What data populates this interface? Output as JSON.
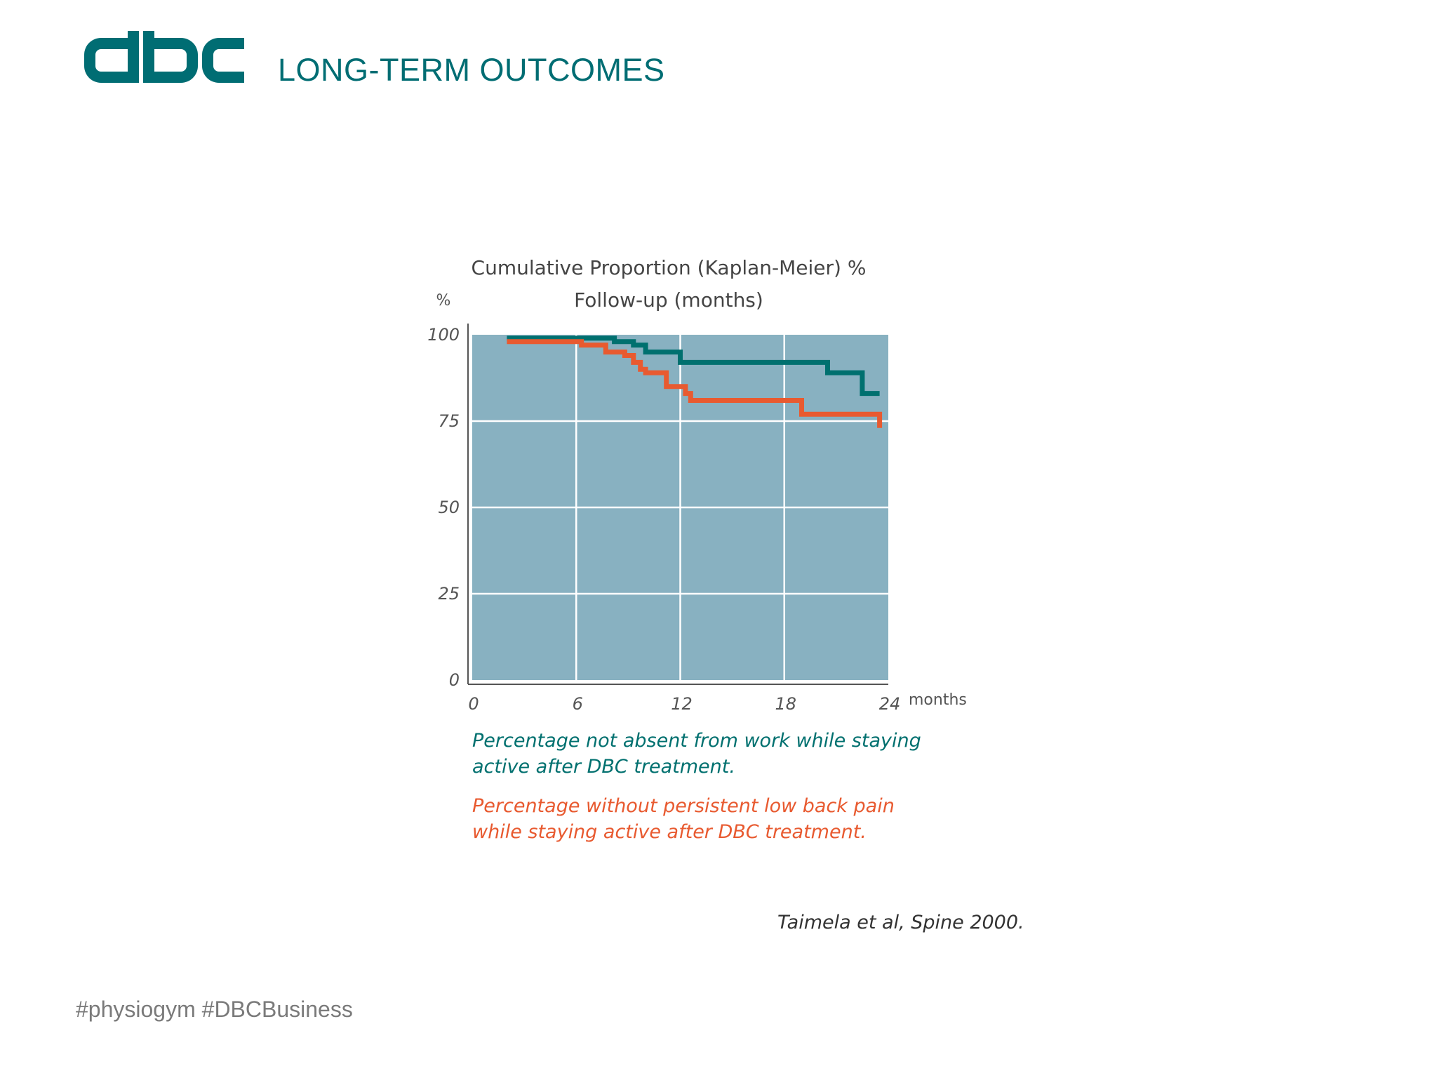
{
  "header": {
    "logo_text": "dbc",
    "title": "LONG-TERM OUTCOMES"
  },
  "colors": {
    "brand": "#006d73",
    "plot_bg": "#88b1c1",
    "series_work": "#00706f",
    "series_pain": "#e85a30",
    "grid": "#ffffff"
  },
  "chart_data": {
    "type": "line",
    "step": true,
    "title_line1": "Cumulative Proportion (Kaplan-Meier) %",
    "title_line2": "Follow-up (months)",
    "ylabel": "%",
    "xlabel": "months",
    "xlim": [
      0,
      24
    ],
    "ylim": [
      0,
      100
    ],
    "x_ticks": [
      "0",
      "6",
      "12",
      "18",
      "24"
    ],
    "y_ticks": [
      "100",
      "75",
      "50",
      "25",
      "0"
    ],
    "grid": true,
    "series": [
      {
        "name": "Percentage not absent from work while staying active after DBC treatment.",
        "legend_line1": "Percentage not absent from work while staying",
        "legend_line2": "active after DBC treatment.",
        "color": "#00706f",
        "points": [
          [
            2,
            99
          ],
          [
            8.2,
            99
          ],
          [
            8.2,
            98
          ],
          [
            9.3,
            98
          ],
          [
            9.3,
            97
          ],
          [
            10,
            97
          ],
          [
            10,
            95
          ],
          [
            12,
            95
          ],
          [
            12,
            92
          ],
          [
            20.5,
            92
          ],
          [
            20.5,
            89
          ],
          [
            22.5,
            89
          ],
          [
            22.5,
            83
          ],
          [
            23.5,
            83
          ]
        ]
      },
      {
        "name": "Percentage without persistent low back pain while staying active after DBC treatment.",
        "legend_line1": "Percentage without persistent low back pain",
        "legend_line2": "while staying active after DBC treatment.",
        "color": "#e85a30",
        "points": [
          [
            2,
            98
          ],
          [
            6.3,
            98
          ],
          [
            6.3,
            97
          ],
          [
            7.7,
            97
          ],
          [
            7.7,
            95
          ],
          [
            8.8,
            95
          ],
          [
            8.8,
            94
          ],
          [
            9.3,
            94
          ],
          [
            9.3,
            92
          ],
          [
            9.7,
            92
          ],
          [
            9.7,
            90
          ],
          [
            10,
            90
          ],
          [
            10,
            89
          ],
          [
            11.2,
            89
          ],
          [
            11.2,
            85
          ],
          [
            12.3,
            85
          ],
          [
            12.3,
            83
          ],
          [
            12.6,
            83
          ],
          [
            12.6,
            81
          ],
          [
            19,
            81
          ],
          [
            19,
            77
          ],
          [
            23.5,
            77
          ],
          [
            23.5,
            73
          ]
        ]
      }
    ]
  },
  "citation": "Taimela et al, Spine 2000.",
  "footer": {
    "hashtags": "#physiogym #DBCBusiness"
  }
}
